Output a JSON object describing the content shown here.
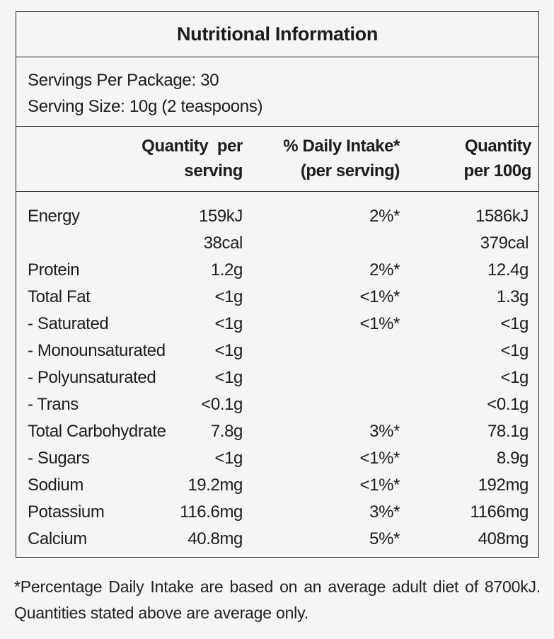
{
  "panel": {
    "title": "Nutritional Information",
    "servings_per_package": "Servings Per Package: 30",
    "serving_size": "Serving Size: 10g (2 teaspoons)",
    "headers": {
      "per_serving_line1": "Quantity  per",
      "per_serving_line2": "serving",
      "daily_intake_line1": "% Daily Intake*",
      "daily_intake_line2": "(per serving)",
      "per_100g_line1": "Quantity",
      "per_100g_line2": "per 100g"
    },
    "rows": [
      {
        "label": "Energy",
        "per_serving": "159kJ",
        "daily_intake": "2%*",
        "per_100g": "1586kJ"
      },
      {
        "label": "",
        "per_serving": "38cal",
        "daily_intake": "",
        "per_100g": "379cal"
      },
      {
        "label": "Protein",
        "per_serving": "1.2g",
        "daily_intake": "2%*",
        "per_100g": "12.4g"
      },
      {
        "label": "Total Fat",
        "per_serving": "<1g",
        "daily_intake": "<1%*",
        "per_100g": "1.3g"
      },
      {
        "label": "- Saturated",
        "per_serving": "<1g",
        "daily_intake": "<1%*",
        "per_100g": "<1g"
      },
      {
        "label": "- Monounsaturated",
        "per_serving": "<1g",
        "daily_intake": "",
        "per_100g": "<1g"
      },
      {
        "label": "- Polyunsaturated",
        "per_serving": "<1g",
        "daily_intake": "",
        "per_100g": "<1g"
      },
      {
        "label": "- Trans",
        "per_serving": "<0.1g",
        "daily_intake": "",
        "per_100g": "<0.1g"
      },
      {
        "label": "Total Carbohydrate",
        "per_serving": "7.8g",
        "daily_intake": "3%*",
        "per_100g": "78.1g"
      },
      {
        "label": "- Sugars",
        "per_serving": "<1g",
        "daily_intake": "<1%*",
        "per_100g": "8.9g"
      },
      {
        "label": "Sodium",
        "per_serving": "19.2mg",
        "daily_intake": "<1%*",
        "per_100g": "192mg"
      },
      {
        "label": "Potassium",
        "per_serving": "116.6mg",
        "daily_intake": "3%*",
        "per_100g": "1166mg"
      },
      {
        "label": "Calcium",
        "per_serving": "40.8mg",
        "daily_intake": "5%*",
        "per_100g": "408mg"
      }
    ]
  },
  "footnote": "*Percentage Daily Intake are based on an average adult diet of 8700kJ. Quantities stated above are average only."
}
